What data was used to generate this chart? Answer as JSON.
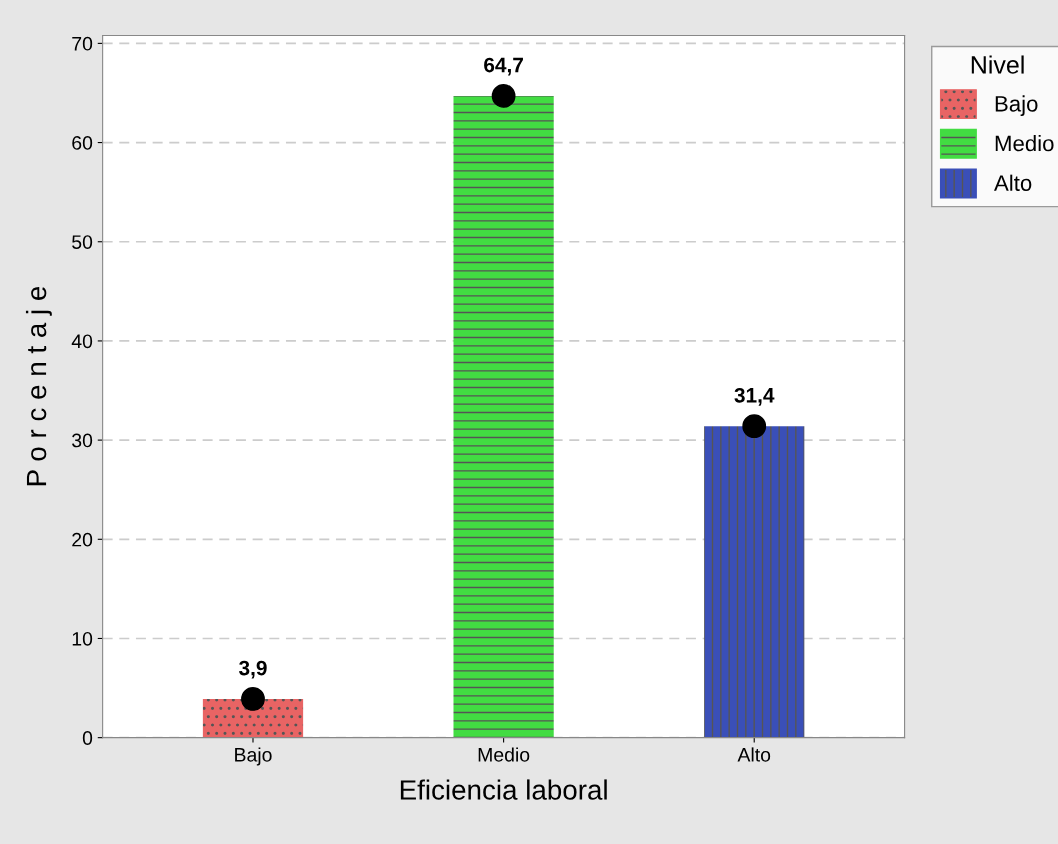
{
  "chart_data": {
    "type": "bar",
    "xlabel": "Eficiencia laboral",
    "ylabel": "P o r c e n t a j e",
    "legend_title": "Nivel",
    "categories": [
      "Bajo",
      "Medio",
      "Alto"
    ],
    "series": [
      {
        "name": "Bajo",
        "color": "#e86464",
        "values": [
          3.9,
          null,
          null
        ],
        "value_labels": [
          "3,9",
          null,
          null
        ]
      },
      {
        "name": "Medio",
        "color": "#42dc42",
        "values": [
          null,
          64.7,
          null
        ],
        "value_labels": [
          null,
          "64,7",
          null
        ]
      },
      {
        "name": "Alto",
        "color": "#3a4fb8",
        "values": [
          null,
          null,
          31.4
        ],
        "value_labels": [
          null,
          null,
          "31,4"
        ]
      },
      {
        "type": "scatter",
        "color": "#000000",
        "marker": "circle",
        "x": [
          "Bajo",
          "Medio",
          "Alto"
        ],
        "values": [
          3.9,
          64.7,
          31.4
        ]
      }
    ],
    "ylim": [
      0,
      70.8
    ],
    "yticks": [
      0,
      10,
      20,
      30,
      40,
      50,
      60,
      70
    ],
    "grid": "y",
    "legend": "top right"
  }
}
